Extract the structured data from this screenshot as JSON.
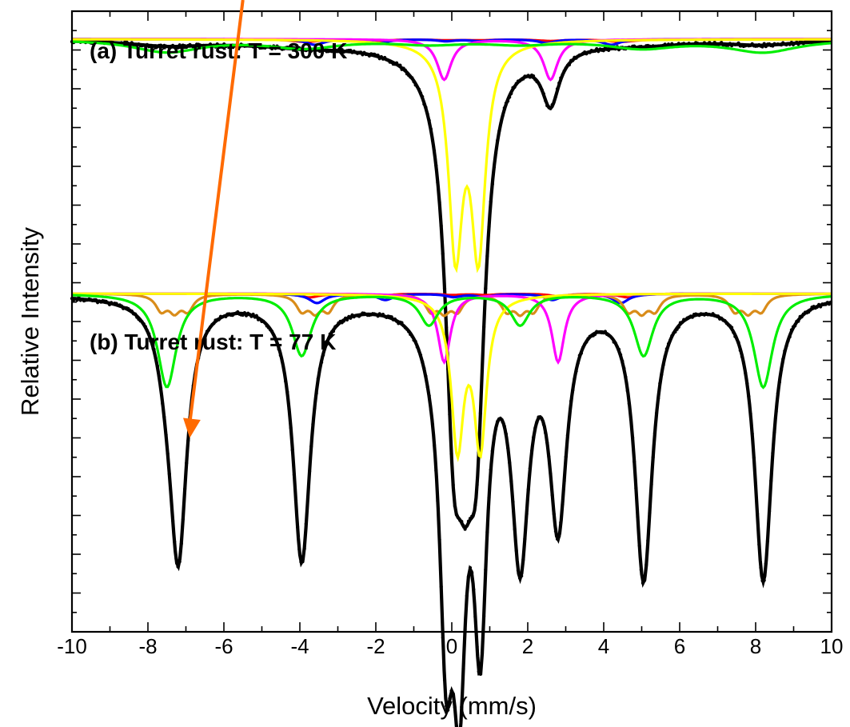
{
  "chart_data": {
    "type": "line",
    "xlabel": "Velocity (mm/s)",
    "ylabel": "Relative Intensity",
    "xlim": [
      -10,
      10
    ],
    "ylim": [
      0,
      1
    ],
    "grid": false,
    "xticks": [
      -10,
      -8,
      -6,
      -4,
      -2,
      0,
      2,
      4,
      6,
      8,
      10
    ],
    "xtick_labels": [
      "-10",
      "-8",
      "-6",
      "-4",
      "-2",
      "0",
      "2",
      "4",
      "6",
      "8",
      "10"
    ],
    "colors": {
      "data": "#000000",
      "fit": "#000000",
      "red": "#ff0000",
      "blue": "#0000ff",
      "magenta": "#ff00ff",
      "yellow": "#ffff00",
      "green": "#00ee00",
      "orange": "#d98c1a",
      "arrow": "#ff6a00"
    },
    "annotation": {
      "type": "arrow",
      "color": "#ff6a00",
      "from": [
        -5.5,
        1.04
      ],
      "to": [
        -6.9,
        0.4
      ]
    },
    "panels": [
      {
        "title": "(a) Turret rust: T = 300 K",
        "baseline": 0.955,
        "components": [
          {
            "color": "red",
            "kind": "sextet",
            "center": 0.3,
            "split": [
              -8.3,
              -4.6,
              -0.9,
              0.9,
              4.6,
              8.3
            ],
            "depth": 0.004,
            "width": 0.9
          },
          {
            "color": "blue",
            "kind": "sextet",
            "center": 0.3,
            "split": [
              -7.8,
              -4.4,
              -0.9,
              0.9,
              4.4,
              7.8
            ],
            "depth": 0.009,
            "width": 0.55
          },
          {
            "color": "magenta",
            "kind": "doublet",
            "lines": [
              -0.2,
              2.6
            ],
            "depth": 0.065,
            "width": 0.45
          },
          {
            "color": "yellow",
            "kind": "doublet",
            "lines": [
              0.1,
              0.7
            ],
            "depth": 0.33,
            "width": 0.45
          },
          {
            "color": "green",
            "kind": "broad",
            "lines": [
              -7.5,
              -3.9,
              -0.6,
              1.8,
              5.0,
              8.2
            ],
            "depth": 0.02,
            "width": 2.2
          }
        ],
        "fit_minima": [
          {
            "x": 0.05,
            "y": 0.47
          },
          {
            "x": 0.35,
            "y": 0.62
          },
          {
            "x": 0.65,
            "y": 0.47
          },
          {
            "x": 2.6,
            "y": 0.87
          }
        ]
      },
      {
        "title": "(b) Turret rust: T = 77 K",
        "baseline": 0.545,
        "components": [
          {
            "color": "red",
            "kind": "sextet",
            "center": 0.45,
            "split": [
              -8.4,
              -4.7,
              -0.9,
              0.9,
              4.7,
              8.4
            ],
            "depth": 0.006,
            "width": 0.6
          },
          {
            "color": "blue",
            "kind": "sextet",
            "center": 0.45,
            "split": [
              -8.0,
              -4.4,
              -0.8,
              0.8,
              4.4,
              8.0
            ],
            "depth": 0.015,
            "width": 0.5
          },
          {
            "color": "orange",
            "kind": "sextet-triple",
            "lines": [
              -7.3,
              -3.6,
              -0.2,
              1.8,
              5.0,
              7.8
            ],
            "depth": 0.04,
            "width": 0.35
          },
          {
            "color": "magenta",
            "kind": "doublet",
            "lines": [
              -0.2,
              2.8
            ],
            "depth": 0.11,
            "width": 0.4
          },
          {
            "color": "yellow",
            "kind": "doublet",
            "lines": [
              0.15,
              0.75
            ],
            "depth": 0.24,
            "width": 0.4
          },
          {
            "color": "green",
            "kind": "sextet",
            "lines": [
              -7.5,
              -3.95,
              -0.6,
              1.8,
              5.05,
              8.2
            ],
            "depth": 0.15,
            "width": 0.6
          }
        ],
        "fit_minima": [
          {
            "x": -7.2,
            "y": 0.14
          },
          {
            "x": -3.95,
            "y": 0.16
          },
          {
            "x": -0.15,
            "y": 0.07
          },
          {
            "x": 0.2,
            "y": 0.04
          },
          {
            "x": 0.75,
            "y": 0.06
          },
          {
            "x": 1.8,
            "y": 0.17
          },
          {
            "x": 2.8,
            "y": 0.2
          },
          {
            "x": 5.05,
            "y": 0.13
          },
          {
            "x": 8.2,
            "y": 0.14
          }
        ]
      }
    ]
  }
}
